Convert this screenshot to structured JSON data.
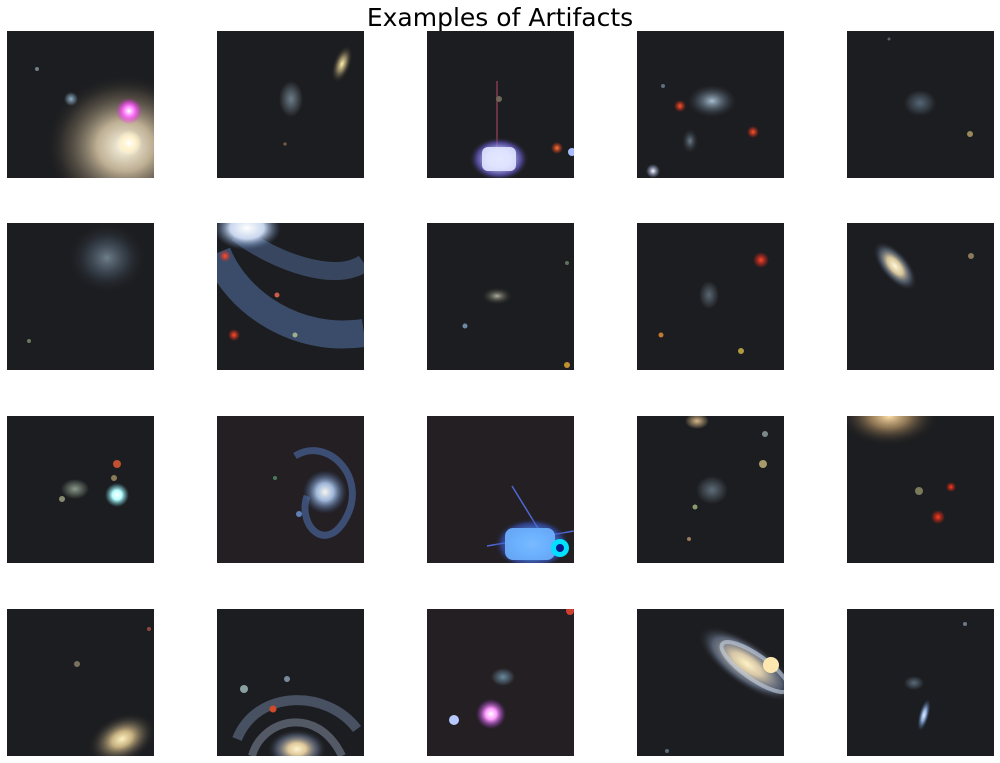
{
  "figure": {
    "title": "Examples of Artifacts"
  },
  "grid": {
    "rows": 4,
    "columns": 5
  },
  "panels": [
    {
      "row": 1,
      "col": 1,
      "content": "bright elliptical galaxy with magenta and white point sources"
    },
    {
      "row": 1,
      "col": 2,
      "content": "faint diffuse galaxy with bright edge-on galaxy"
    },
    {
      "row": 1,
      "col": 3,
      "content": "saturated blue-white star with spikes"
    },
    {
      "row": 1,
      "col": 4,
      "content": "interacting galaxies with red stars"
    },
    {
      "row": 1,
      "col": 5,
      "content": "faint small galaxy"
    },
    {
      "row": 2,
      "col": 1,
      "content": "faint face-on spiral"
    },
    {
      "row": 2,
      "col": 2,
      "content": "large blue spiral arm segment with red sources"
    },
    {
      "row": 2,
      "col": 3,
      "content": "small faint galaxy"
    },
    {
      "row": 2,
      "col": 4,
      "content": "faint galaxy with red star"
    },
    {
      "row": 2,
      "col": 5,
      "content": "bright elongated galaxy"
    },
    {
      "row": 3,
      "col": 1,
      "content": "bright cyan-white star and faint sources"
    },
    {
      "row": 3,
      "col": 2,
      "content": "blue spiral galaxy"
    },
    {
      "row": 3,
      "col": 3,
      "content": "saturated blue artifact with spikes"
    },
    {
      "row": 3,
      "col": 4,
      "content": "faint diffuse galaxy"
    },
    {
      "row": 3,
      "col": 5,
      "content": "bright galaxy glow at top edge with red sources"
    },
    {
      "row": 4,
      "col": 1,
      "content": "bright elliptical galaxy at lower right"
    },
    {
      "row": 4,
      "col": 2,
      "content": "spiral galaxy at bottom edge"
    },
    {
      "row": 4,
      "col": 3,
      "content": "bright magenta star and small galaxy"
    },
    {
      "row": 4,
      "col": 4,
      "content": "large inclined spiral galaxy"
    },
    {
      "row": 4,
      "col": 5,
      "content": "small edge-on blue galaxy"
    }
  ],
  "colors": {
    "background": "#ffffff",
    "sky": "#1c1d20",
    "title_text": "#000000"
  }
}
